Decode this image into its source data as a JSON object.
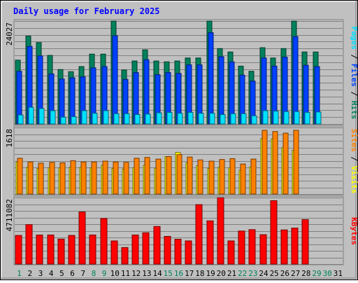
{
  "title": "Daily usage for February 2025",
  "colors": {
    "background": "#c0c0c0",
    "title": "#0000ff",
    "hits": "#00805c",
    "files": "#0040ff",
    "pages": "#00e0ff",
    "visits": "#ffff00",
    "sites": "#ff8000",
    "kbytes": "#ff0000",
    "weekend_label": "#00805c",
    "weekday_label": "#000000"
  },
  "chart_data": [
    {
      "type": "bar",
      "panel": "requests",
      "ylabel_parts": [
        {
          "text": "Pages",
          "color": "#00e0ff"
        },
        {
          "text": " / ",
          "color": "#000000"
        },
        {
          "text": "Files",
          "color": "#0040ff"
        },
        {
          "text": " / ",
          "color": "#000000"
        },
        {
          "text": "Hits",
          "color": "#00805c"
        }
      ],
      "y_max_label": "24027",
      "ylim": [
        0,
        24027
      ],
      "grid": true,
      "series": [
        {
          "name": "Hits",
          "values": [
            14900,
            20500,
            19000,
            16000,
            12700,
            12200,
            13400,
            16300,
            16300,
            24000,
            12600,
            14700,
            17300,
            14700,
            14500,
            14700,
            15400,
            15400,
            24000,
            17600,
            16800,
            13500,
            12300,
            17800,
            15400,
            17600,
            24000,
            16800,
            16800,
            0,
            0
          ]
        },
        {
          "name": "Files",
          "values": [
            12300,
            18100,
            15900,
            11700,
            10500,
            10800,
            11000,
            13100,
            13400,
            20600,
            10400,
            12000,
            15000,
            11500,
            12000,
            11800,
            13800,
            13800,
            21300,
            15700,
            14500,
            11400,
            10000,
            15400,
            13500,
            15600,
            20400,
            13700,
            13400,
            0,
            0
          ]
        },
        {
          "name": "Pages",
          "values": [
            2100,
            3900,
            3600,
            3100,
            1600,
            1700,
            3100,
            2500,
            3100,
            2400,
            2400,
            2200,
            2300,
            2600,
            2700,
            2500,
            2700,
            2500,
            2500,
            2200,
            2400,
            2400,
            1900,
            3100,
            3000,
            2900,
            2900,
            2700,
            2800,
            0,
            0
          ]
        }
      ]
    },
    {
      "type": "bar",
      "panel": "visitors",
      "ylabel_parts": [
        {
          "text": "Sites",
          "color": "#ff8000"
        },
        {
          "text": " / ",
          "color": "#000000"
        },
        {
          "text": "Visits",
          "color": "#ffff00"
        }
      ],
      "y_max_label": "1618",
      "ylim": [
        0,
        1618
      ],
      "grid": true,
      "series": [
        {
          "name": "Visits",
          "values": [
            780,
            650,
            620,
            640,
            640,
            650,
            650,
            640,
            700,
            620,
            610,
            640,
            700,
            630,
            910,
            1010,
            760,
            690,
            620,
            650,
            640,
            580,
            660,
            1350,
            1340,
            1130,
            1060,
            0,
            0,
            0,
            0
          ]
        },
        {
          "name": "Sites",
          "values": [
            870,
            780,
            750,
            770,
            760,
            810,
            780,
            780,
            800,
            780,
            770,
            870,
            890,
            850,
            910,
            960,
            900,
            830,
            800,
            840,
            860,
            730,
            850,
            1550,
            1520,
            1480,
            1550,
            0,
            0,
            0,
            0
          ]
        }
      ]
    },
    {
      "type": "bar",
      "panel": "volume",
      "ylabel_parts": [
        {
          "text": "KBytes",
          "color": "#ff0000"
        }
      ],
      "y_max_label": "4711082",
      "ylim": [
        0,
        4711082
      ],
      "grid": true,
      "series": [
        {
          "name": "KBytes",
          "values": [
            2030000,
            2790000,
            2060000,
            2060000,
            1770000,
            2030000,
            3690000,
            2060000,
            3230000,
            1640000,
            1170000,
            2060000,
            2220000,
            2660000,
            1960000,
            1760000,
            1640000,
            4210000,
            3060000,
            4700000,
            1640000,
            2340000,
            2440000,
            2080000,
            4490000,
            2420000,
            2550000,
            3150000,
            0,
            0,
            0
          ]
        }
      ]
    }
  ],
  "days": {
    "labels": [
      "1",
      "2",
      "3",
      "4",
      "5",
      "6",
      "7",
      "8",
      "9",
      "10",
      "11",
      "12",
      "13",
      "14",
      "15",
      "16",
      "17",
      "18",
      "19",
      "20",
      "21",
      "22",
      "23",
      "24",
      "25",
      "26",
      "27",
      "28",
      "29",
      "30",
      "31"
    ],
    "weekend": [
      1,
      0,
      0,
      0,
      0,
      0,
      0,
      1,
      1,
      0,
      0,
      0,
      0,
      0,
      1,
      1,
      0,
      0,
      0,
      0,
      0,
      1,
      1,
      0,
      0,
      0,
      0,
      0,
      1,
      1,
      0
    ]
  }
}
